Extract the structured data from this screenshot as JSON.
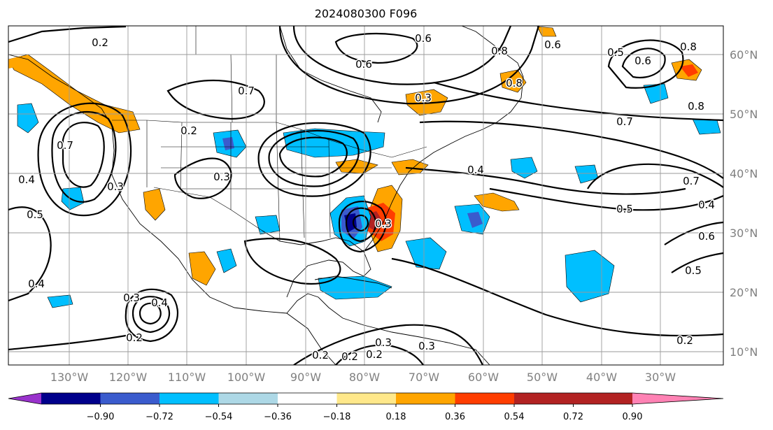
{
  "title": "2024080300 F096",
  "lon_labels": [
    "130°W",
    "120°W",
    "110°W",
    "100°W",
    "90°W",
    "80°W",
    "70°W",
    "60°W",
    "50°W",
    "40°W",
    "30°W"
  ],
  "lat_labels": [
    "60°N",
    "50°N",
    "40°N",
    "30°N",
    "20°N",
    "10°N"
  ],
  "colorbar": {
    "colors": [
      "#9932cc",
      "#00008b",
      "#3a5bcd",
      "#00bfff",
      "#add8e6",
      "#ffffff",
      "#ffe88a",
      "#ffa500",
      "#ff3d00",
      "#b22222",
      "#ff82b4"
    ],
    "tick_labels": [
      "−0.90",
      "−0.72",
      "−0.54",
      "−0.36",
      "−0.18",
      "0.18",
      "0.36",
      "0.54",
      "0.72",
      "0.90"
    ]
  },
  "contour_labels": [
    "0.2",
    "0.6",
    "0.8",
    "0.6",
    "0.8",
    "0.6",
    "0.8",
    "0.7",
    "0.8",
    "0.7",
    "0.7",
    "0.4",
    "0.5",
    "0.6",
    "0.5",
    "0.4",
    "0.2",
    "0.2",
    "0.2",
    "0.3",
    "0.4",
    "0.5",
    "0.4",
    "0.2",
    "0.3",
    "0.4",
    "0.3",
    "0.3",
    "0.3",
    "0.2",
    "0.3",
    "0.2",
    "0.7",
    "0.3",
    "0.5",
    "0.6"
  ]
}
